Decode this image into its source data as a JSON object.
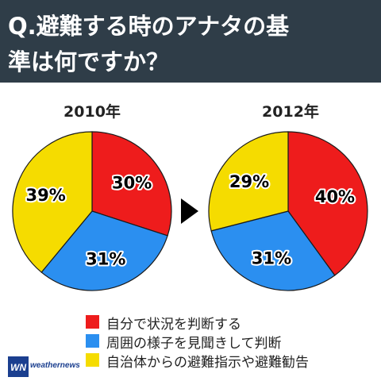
{
  "header": {
    "title_line1": "Q.避難する時のアナタの基",
    "title_line2": "準は何ですか？"
  },
  "colors": {
    "header_bg": "#2f3d48",
    "red": "#ee1c1c",
    "blue": "#2b8ff0",
    "yellow": "#f5dc00"
  },
  "chart_data": [
    {
      "type": "pie",
      "title": "2010年",
      "slices": [
        {
          "label": "自分で状況を判断する",
          "value": 30,
          "text": "30%",
          "color": "#ee1c1c"
        },
        {
          "label": "周囲の様子を見聞きして判断",
          "value": 31,
          "text": "31%",
          "color": "#2b8ff0"
        },
        {
          "label": "自治体からの避難指示や避難勧告",
          "value": 39,
          "text": "39%",
          "color": "#f5dc00"
        }
      ]
    },
    {
      "type": "pie",
      "title": "2012年",
      "slices": [
        {
          "label": "自分で状況を判断する",
          "value": 40,
          "text": "40%",
          "color": "#ee1c1c"
        },
        {
          "label": "周囲の様子を見聞きして判断",
          "value": 31,
          "text": "31%",
          "color": "#2b8ff0"
        },
        {
          "label": "自治体からの避難指示や避難勧告",
          "value": 29,
          "text": "29%",
          "color": "#f5dc00"
        }
      ]
    }
  ],
  "legend": [
    {
      "label": "自分で状況を判断する",
      "color": "#ee1c1c"
    },
    {
      "label": "周囲の様子を見聞きして判断",
      "color": "#2b8ff0"
    },
    {
      "label": "自治体からの避難指示や避難勧告",
      "color": "#f5dc00"
    }
  ],
  "footer": {
    "logo_icon": "weathernews-logo-icon",
    "logo_text": "weathernews"
  }
}
